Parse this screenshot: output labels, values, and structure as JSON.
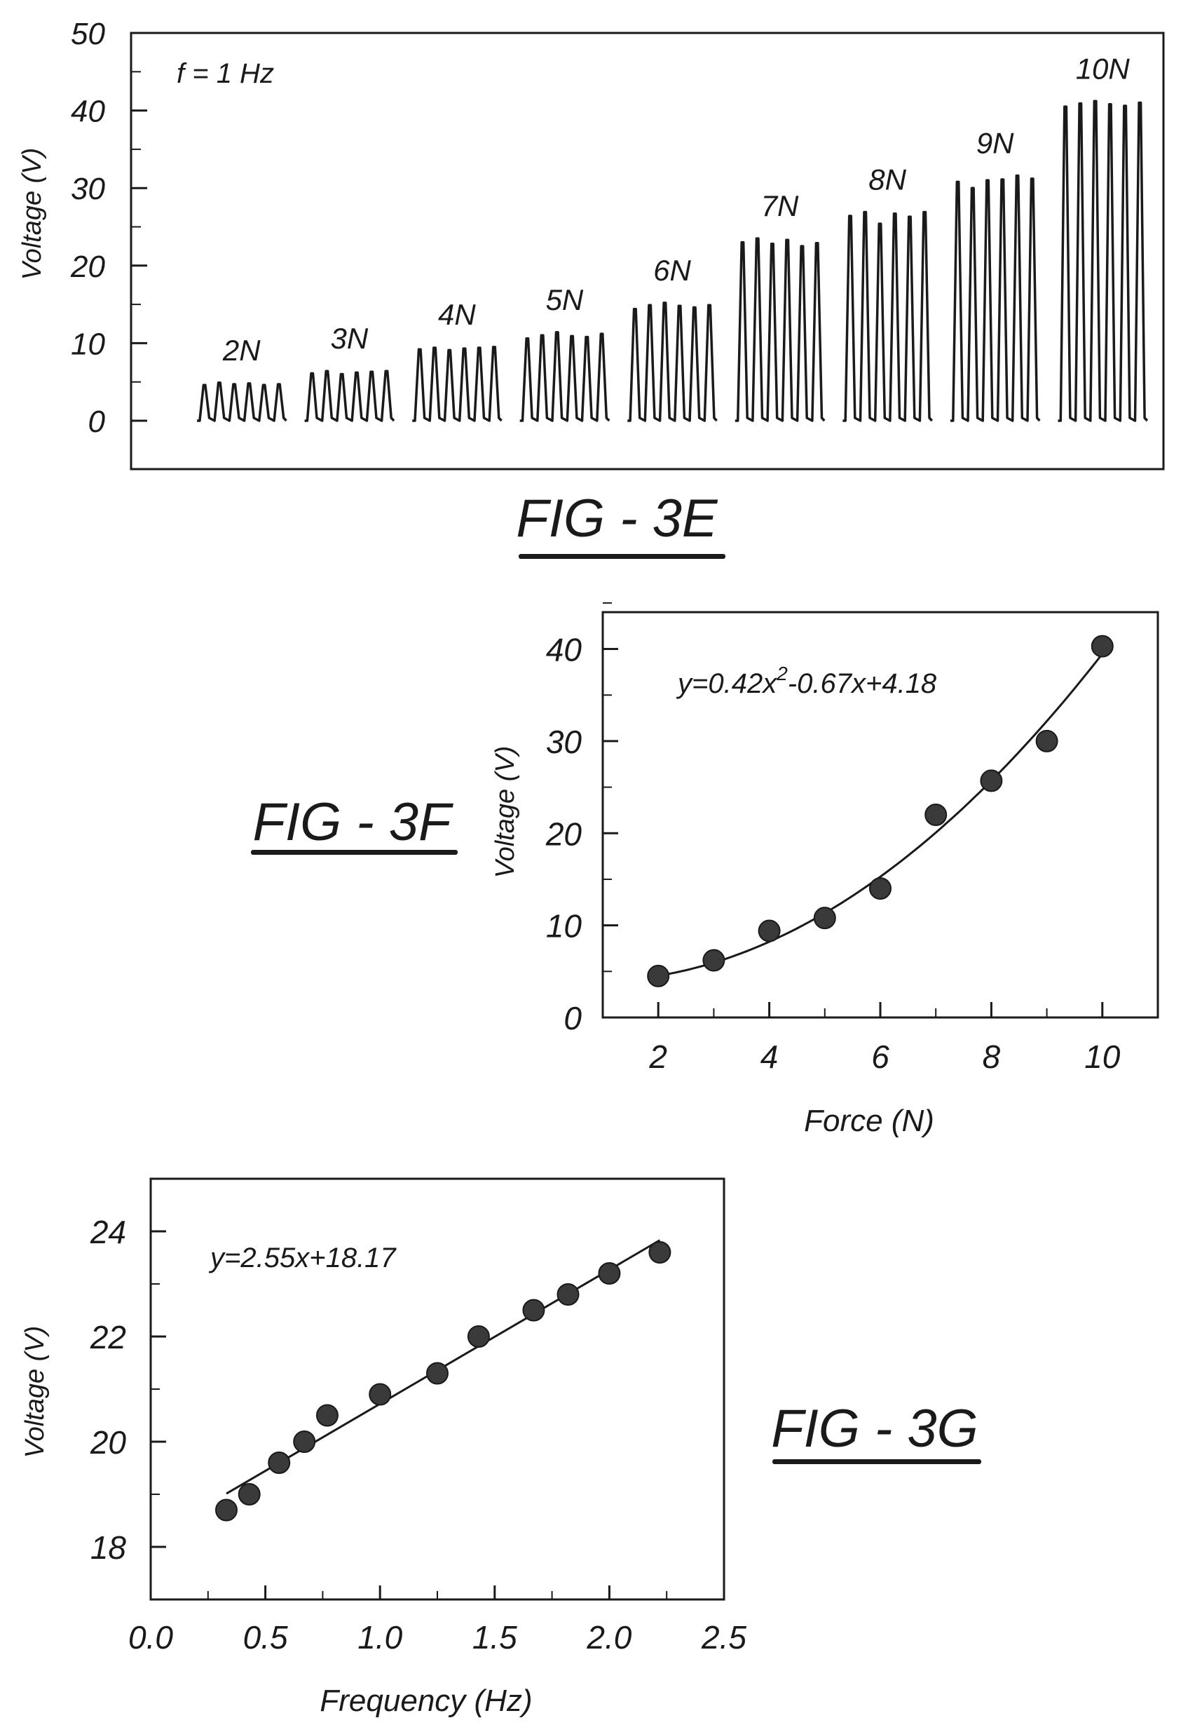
{
  "figures": [
    {
      "label": "FIG - 3E"
    },
    {
      "label": "FIG - 3F"
    },
    {
      "label": "FIG - 3G"
    }
  ],
  "chart_data": [
    {
      "id": "fig3e",
      "type": "line",
      "title": "",
      "ylabel": "Voltage (V)",
      "xlabel": "",
      "annotation": "f = 1 Hz",
      "ylim": [
        0,
        50
      ],
      "yticks": [
        "0",
        "10",
        "20",
        "30",
        "40",
        "50"
      ],
      "grid": false,
      "groups": [
        {
          "label": "2N",
          "peaks": [
            4.6,
            4.9,
            4.7,
            4.8,
            4.6,
            4.7
          ]
        },
        {
          "label": "3N",
          "peaks": [
            6.1,
            6.4,
            6.0,
            6.2,
            6.3,
            6.4
          ]
        },
        {
          "label": "4N",
          "peaks": [
            9.2,
            9.4,
            9.1,
            9.3,
            9.4,
            9.5
          ]
        },
        {
          "label": "5N",
          "peaks": [
            10.6,
            11.0,
            11.4,
            10.9,
            10.8,
            11.2
          ]
        },
        {
          "label": "6N",
          "peaks": [
            14.4,
            14.9,
            15.2,
            14.8,
            14.6,
            14.9
          ]
        },
        {
          "label": "7N",
          "peaks": [
            23.0,
            23.5,
            22.8,
            23.3,
            22.5,
            22.9
          ]
        },
        {
          "label": "8N",
          "peaks": [
            26.4,
            26.9,
            25.4,
            26.7,
            26.3,
            26.9
          ]
        },
        {
          "label": "9N",
          "peaks": [
            30.8,
            30.0,
            31.0,
            31.1,
            31.6,
            31.2
          ]
        },
        {
          "label": "10N",
          "peaks": [
            40.5,
            40.9,
            41.2,
            40.8,
            40.6,
            41.0
          ]
        }
      ]
    },
    {
      "id": "fig3f",
      "type": "scatter",
      "title": "",
      "xlabel": "Force (N)",
      "ylabel": "Voltage (V)",
      "equation_base": "y=0.42x",
      "equation_sup": "2",
      "equation_rest": "-0.67x+4.18",
      "fit": {
        "kind": "quadratic",
        "coefficients": [
          0.42,
          -0.67,
          4.18
        ],
        "xrange": [
          2,
          10
        ]
      },
      "xlim": [
        1,
        11
      ],
      "ylim": [
        0,
        44
      ],
      "xticks": [
        "2",
        "4",
        "6",
        "8",
        "10"
      ],
      "yticks": [
        "0",
        "10",
        "20",
        "30",
        "40"
      ],
      "grid": false,
      "x": [
        2,
        3,
        4,
        5,
        6,
        7,
        8,
        9,
        10
      ],
      "y": [
        4.5,
        6.2,
        9.4,
        10.8,
        14.0,
        22.0,
        25.7,
        30.0,
        40.3
      ]
    },
    {
      "id": "fig3g",
      "type": "scatter",
      "title": "",
      "xlabel": "Frequency (Hz)",
      "ylabel": "Voltage (V)",
      "equation": "y=2.55x+18.17",
      "fit": {
        "kind": "linear",
        "coefficients": [
          2.55,
          18.17
        ],
        "xrange": [
          0.33,
          2.22
        ]
      },
      "xlim": [
        0.0,
        2.5
      ],
      "ylim": [
        17,
        25
      ],
      "xticks": [
        "0.0",
        "0.5",
        "1.0",
        "1.5",
        "2.0",
        "2.5"
      ],
      "yticks": [
        "18",
        "20",
        "22",
        "24"
      ],
      "grid": false,
      "x": [
        0.33,
        0.43,
        0.56,
        0.67,
        0.77,
        1.0,
        1.25,
        1.43,
        1.67,
        1.82,
        2.0,
        2.22
      ],
      "y": [
        18.7,
        19.0,
        19.6,
        20.0,
        20.5,
        20.9,
        21.3,
        22.0,
        22.5,
        22.8,
        23.2,
        23.6
      ]
    }
  ]
}
